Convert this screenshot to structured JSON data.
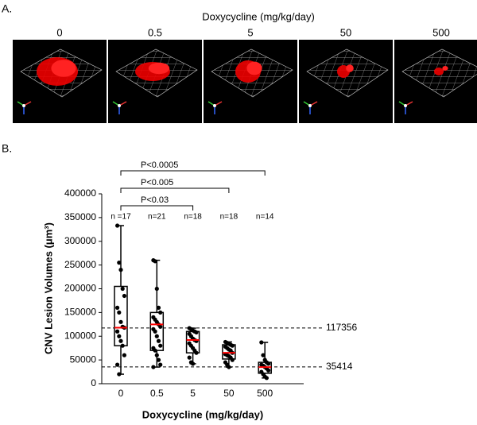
{
  "panel_a": {
    "label": "A.",
    "title": "Doxycycline (mg/kg/day)",
    "doses": [
      "0",
      "0.5",
      "5",
      "50",
      "500"
    ]
  },
  "chart_data": {
    "type": "box",
    "panel_label": "B.",
    "x_label": "Doxycycline (mg/kg/day)",
    "y_label": "CNV Lesion Volumes (μm³)",
    "categories": [
      "0",
      "0.5",
      "5",
      "50",
      "500"
    ],
    "min": [
      20000,
      35000,
      42000,
      35000,
      12000
    ],
    "q1": [
      80000,
      70000,
      65000,
      52000,
      22000
    ],
    "median": [
      118000,
      125000,
      92000,
      65000,
      35000
    ],
    "q3": [
      205000,
      150000,
      110000,
      82000,
      45000
    ],
    "max": [
      333000,
      260000,
      117000,
      88000,
      87000
    ],
    "points": [
      [
        333000,
        255000,
        240000,
        200000,
        185000,
        160000,
        150000,
        130000,
        120000,
        118000,
        110000,
        100000,
        90000,
        80000,
        60000,
        40000,
        20000
      ],
      [
        260000,
        258000,
        200000,
        160000,
        150000,
        140000,
        135000,
        130000,
        125000,
        120000,
        115000,
        110000,
        100000,
        90000,
        80000,
        75000,
        70000,
        60000,
        50000,
        40000,
        35000
      ],
      [
        117000,
        115000,
        112000,
        110000,
        108000,
        105000,
        100000,
        95000,
        92000,
        90000,
        85000,
        80000,
        75000,
        70000,
        65000,
        55000,
        45000,
        42000
      ],
      [
        88000,
        86000,
        84000,
        82000,
        80000,
        78000,
        75000,
        72000,
        70000,
        65000,
        62000,
        60000,
        58000,
        55000,
        50000,
        45000,
        40000,
        35000
      ],
      [
        87000,
        60000,
        50000,
        45000,
        42000,
        40000,
        38000,
        35000,
        32000,
        28000,
        25000,
        20000,
        15000,
        12000
      ]
    ],
    "n_labels": [
      "n =17",
      "n=21",
      "n=18",
      "n=18",
      "n=14"
    ],
    "reference_lines": [
      117356,
      35414
    ],
    "brackets": [
      {
        "from": "0",
        "to": "5",
        "label": "P<0.03"
      },
      {
        "from": "0",
        "to": "50",
        "label": "P<0.005"
      },
      {
        "from": "0",
        "to": "500",
        "label": "P<0.0005"
      }
    ],
    "box_color": "#000000",
    "median_color": "#ff0000",
    "point_color": "#000000",
    "ylim": [
      0,
      400000
    ],
    "yticks": [
      0,
      50000,
      100000,
      150000,
      200000,
      250000,
      300000,
      350000,
      400000
    ]
  }
}
